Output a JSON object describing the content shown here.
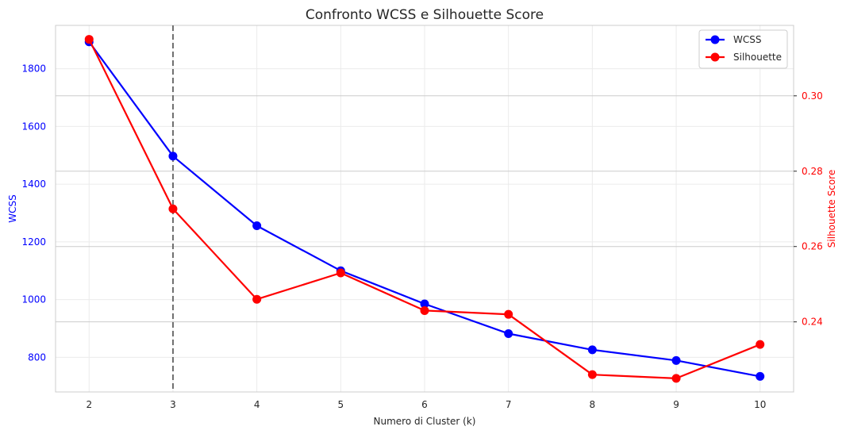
{
  "chart_data": {
    "type": "line",
    "title": "Confronto WCSS e Silhouette Score",
    "xlabel": "Numero di Cluster (k)",
    "x": [
      2,
      3,
      4,
      5,
      6,
      7,
      8,
      9,
      10
    ],
    "xlim": [
      1.6,
      10.4
    ],
    "optimal_k": 3,
    "left_axis": {
      "label": "WCSS",
      "color": "#0000ff",
      "ylim": [
        680,
        1950
      ],
      "ticks": [
        800,
        1000,
        1200,
        1400,
        1600,
        1800
      ]
    },
    "right_axis": {
      "label": "Silhouette Score",
      "color": "#ff0000",
      "ylim": [
        0.2214,
        0.3187
      ],
      "ticks": [
        "0.24",
        "0.26",
        "0.28",
        "0.30"
      ]
    },
    "series": [
      {
        "name": "WCSS",
        "axis": "left",
        "color": "#0000ff",
        "values": [
          1893,
          1497,
          1256,
          1100,
          985,
          882,
          826,
          789,
          734
        ]
      },
      {
        "name": "Silhouette",
        "axis": "right",
        "color": "#ff0000",
        "values": [
          0.315,
          0.27,
          0.246,
          0.253,
          0.243,
          0.242,
          0.226,
          0.225,
          0.234
        ]
      }
    ],
    "grid": true,
    "legend_position": "top-right"
  }
}
